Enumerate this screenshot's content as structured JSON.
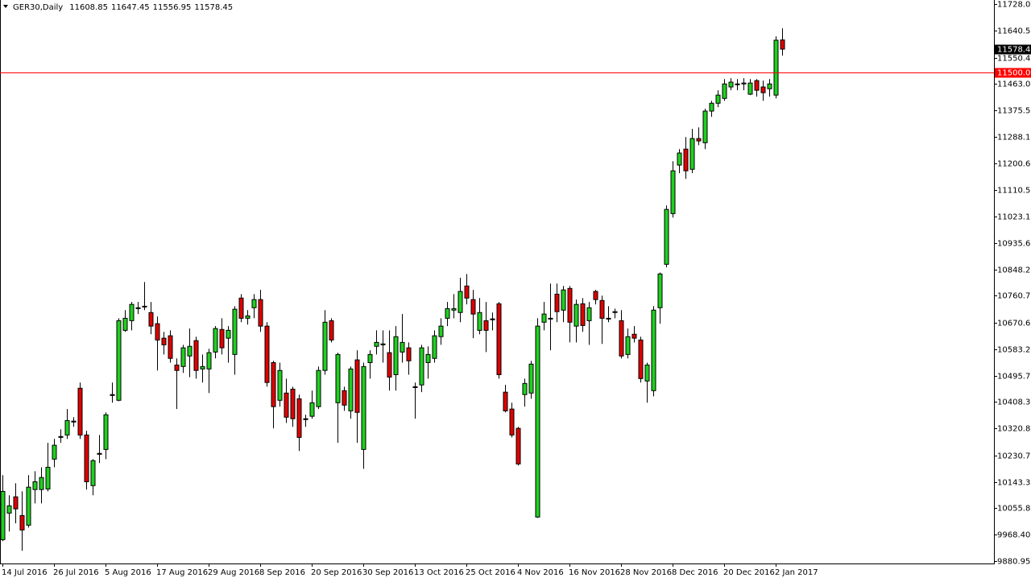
{
  "chart_data": {
    "type": "candlestick",
    "title": "GER30,Daily",
    "up_color": "#1fd11f",
    "down_color": "#e00000",
    "wick_color": "#000000",
    "categories": [
      "14 Jul 2016",
      null,
      null,
      null,
      null,
      null,
      null,
      null,
      "26 Jul 2016",
      null,
      null,
      null,
      null,
      null,
      null,
      null,
      "5 Aug 2016",
      null,
      null,
      null,
      null,
      null,
      null,
      null,
      "17 Aug 2016",
      null,
      null,
      null,
      null,
      null,
      null,
      null,
      "29 Aug 2016",
      null,
      null,
      null,
      null,
      null,
      null,
      null,
      "8 Sep 2016",
      null,
      null,
      null,
      null,
      null,
      null,
      null,
      "20 Sep 2016",
      null,
      null,
      null,
      null,
      null,
      null,
      null,
      "30 Sep 2016",
      null,
      null,
      null,
      null,
      null,
      null,
      null,
      "13 Oct 2016",
      null,
      null,
      null,
      null,
      null,
      null,
      null,
      "25 Oct 2016",
      null,
      null,
      null,
      null,
      null,
      null,
      null,
      "4 Nov 2016",
      null,
      null,
      null,
      null,
      null,
      null,
      null,
      "16 Nov 2016",
      null,
      null,
      null,
      null,
      null,
      null,
      null,
      "28 Nov 2016",
      null,
      null,
      null,
      null,
      null,
      null,
      null,
      "8 Dec 2016",
      null,
      null,
      null,
      null,
      null,
      null,
      null,
      "20 Dec 2016",
      null,
      null,
      null,
      null,
      null,
      null,
      null,
      "2 Jan 2017",
      null
    ],
    "open": [
      9952,
      10040,
      10094,
      10032,
      10000,
      10118,
      10118,
      10120,
      10219,
      10294,
      10299,
      10345,
      10454,
      10299,
      10131,
      10238,
      10251,
      10433,
      10414,
      10646,
      10678,
      10718,
      10726,
      10705,
      10668,
      10620,
      10628,
      10531,
      10526,
      10561,
      10612,
      10518,
      10518,
      10574,
      10649,
      10620,
      10566,
      10753,
      10686,
      10721,
      10748,
      10660,
      10539,
      10414,
      10438,
      10451,
      10419,
      10353,
      10361,
      10393,
      10513,
      10678,
      10406,
      10446,
      10379,
      10548,
      10251,
      10539,
      10593,
      10598,
      10572,
      10499,
      10574,
      10588,
      10459,
      10465,
      10539,
      10553,
      10625,
      10686,
      10713,
      10705,
      10793,
      10748,
      10646,
      10678,
      10684,
      10734,
      10441,
      10385,
      10321,
      10433,
      10438,
      10027,
      10673,
      10686,
      10766,
      10713,
      10785,
      10660,
      10734,
      10678,
      10775,
      10745,
      10686,
      10705,
      10678,
      10566,
      10633,
      10614,
      10478,
      10446,
      10721,
      10865,
      11033,
      11194,
      11247,
      11180,
      11282,
      11268,
      11373,
      11399,
      11415,
      11453,
      11461,
      11463,
      11429,
      11474,
      11453,
      11447,
      11426,
      11608.85
    ],
    "high": [
      10166,
      10099,
      10139,
      10112,
      10166,
      10179,
      10192,
      10273,
      10286,
      10318,
      10385,
      10358,
      10473,
      10313,
      10219,
      10299,
      10374,
      10473,
      10686,
      10713,
      10740,
      10740,
      10806,
      10740,
      10692,
      10641,
      10646,
      10553,
      10598,
      10652,
      10625,
      10566,
      10585,
      10660,
      10686,
      10660,
      10726,
      10766,
      10713,
      10766,
      10780,
      10673,
      10545,
      10539,
      10486,
      10459,
      10433,
      10366,
      10446,
      10526,
      10713,
      10686,
      10572,
      10459,
      10526,
      10580,
      10539,
      10580,
      10646,
      10646,
      10646,
      10660,
      10700,
      10606,
      10473,
      10598,
      10593,
      10646,
      10686,
      10740,
      10766,
      10820,
      10833,
      10780,
      10753,
      10740,
      10705,
      10740,
      10465,
      10406,
      10326,
      10486,
      10545,
      10686,
      10740,
      10801,
      10801,
      10793,
      10793,
      10748,
      10753,
      10740,
      10780,
      10761,
      10726,
      10718,
      10713,
      10652,
      10660,
      10625,
      10539,
      10726,
      10838,
      11060,
      11207,
      11247,
      11287,
      11314,
      11319,
      11381,
      11407,
      11442,
      11479,
      11482,
      11479,
      11482,
      11479,
      11479,
      11474,
      11479,
      11621,
      11647.45
    ],
    "low": [
      9947,
      9979,
      10006,
      9915,
      9992,
      10072,
      10072,
      10112,
      10192,
      10273,
      10286,
      10326,
      10286,
      10118,
      10099,
      10206,
      10219,
      10406,
      10411,
      10641,
      10646,
      10700,
      10713,
      10633,
      10513,
      10566,
      10539,
      10385,
      10505,
      10491,
      10486,
      10473,
      10438,
      10553,
      10566,
      10539,
      10499,
      10673,
      10665,
      10686,
      10641,
      10459,
      10321,
      10393,
      10339,
      10326,
      10246,
      10326,
      10353,
      10385,
      10499,
      10606,
      10273,
      10379,
      10353,
      10273,
      10187,
      10486,
      10566,
      10539,
      10446,
      10446,
      10539,
      10499,
      10353,
      10441,
      10486,
      10539,
      10598,
      10660,
      10686,
      10673,
      10732,
      10620,
      10633,
      10574,
      10646,
      10486,
      10374,
      10291,
      10198,
      10393,
      10419,
      10024,
      10646,
      10580,
      10673,
      10673,
      10606,
      10606,
      10641,
      10598,
      10732,
      10601,
      10673,
      10686,
      10553,
      10553,
      10606,
      10473,
      10406,
      10427,
      10668,
      10855,
      11020,
      11167,
      11148,
      11167,
      11260,
      11247,
      11354,
      11386,
      11407,
      11442,
      11442,
      11442,
      11426,
      11421,
      11407,
      11421,
      11415,
      11556.95
    ],
    "close": [
      10112,
      10064,
      10054,
      9984,
      10126,
      10144,
      10158,
      10192,
      10265,
      10291,
      10347,
      10342,
      10299,
      10144,
      10214,
      10235,
      10366,
      10430,
      10678,
      10686,
      10732,
      10721,
      10724,
      10660,
      10614,
      10598,
      10553,
      10513,
      10588,
      10593,
      10513,
      10526,
      10572,
      10652,
      10588,
      10646,
      10716,
      10686,
      10694,
      10748,
      10660,
      10473,
      10393,
      10513,
      10358,
      10353,
      10291,
      10350,
      10406,
      10513,
      10673,
      10614,
      10566,
      10398,
      10518,
      10374,
      10526,
      10566,
      10606,
      10601,
      10491,
      10625,
      10606,
      10545,
      10457,
      10588,
      10566,
      10628,
      10660,
      10718,
      10718,
      10775,
      10753,
      10700,
      10705,
      10646,
      10681,
      10499,
      10379,
      10299,
      10203,
      10470,
      10534,
      10660,
      10700,
      10684,
      10708,
      10780,
      10673,
      10732,
      10662,
      10721,
      10748,
      10686,
      10684,
      10708,
      10561,
      10625,
      10620,
      10486,
      10531,
      10713,
      10833,
      11047,
      11175,
      11234,
      11175,
      11282,
      11274,
      11373,
      11399,
      11426,
      11463,
      11469,
      11463,
      11466,
      11466,
      11442,
      11434,
      11463,
      11608,
      11578.45
    ],
    "ylim": [
      9880.95,
      11728.0
    ],
    "yticks": [
      {
        "value": 11728.0,
        "label": "11728.00"
      },
      11640.55,
      11550.45,
      {
        "value": 11463.0,
        "label": "11463.00"
      },
      11375.55,
      {
        "value": 11288.1,
        "label": "11288.10"
      },
      11200.65,
      11110.55,
      {
        "value": 11023.1,
        "label": "11023.10"
      },
      10935.65,
      {
        "value": 10848.2,
        "label": "10848.20"
      },
      10760.75,
      10670.65,
      {
        "value": 10583.2,
        "label": "10583.20"
      },
      10495.75,
      {
        "value": 10408.3,
        "label": "10408.30"
      },
      10320.85,
      10230.75,
      {
        "value": 10143.3,
        "label": "10143.30"
      },
      10055.85,
      {
        "value": 9968.4,
        "label": "9968.40"
      },
      9880.95
    ],
    "hline": {
      "value": 11500,
      "label": "11500.00",
      "color": "#ff0000"
    },
    "grid": false
  }
}
